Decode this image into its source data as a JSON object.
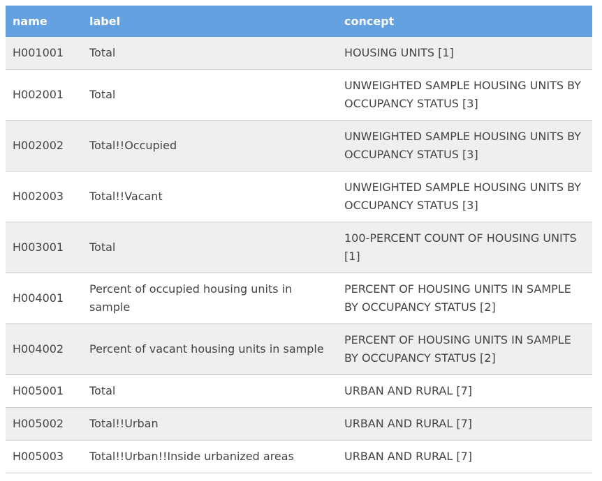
{
  "table": {
    "headers": [
      "name",
      "label",
      "concept"
    ],
    "rows": [
      {
        "name": "H001001",
        "label": "Total",
        "concept": "HOUSING UNITS [1]"
      },
      {
        "name": "H002001",
        "label": "Total",
        "concept": "UNWEIGHTED SAMPLE HOUSING UNITS BY OCCUPANCY STATUS [3]"
      },
      {
        "name": "H002002",
        "label": "Total!!Occupied",
        "concept": "UNWEIGHTED SAMPLE HOUSING UNITS BY OCCUPANCY STATUS [3]"
      },
      {
        "name": "H002003",
        "label": "Total!!Vacant",
        "concept": "UNWEIGHTED SAMPLE HOUSING UNITS BY OCCUPANCY STATUS [3]"
      },
      {
        "name": "H003001",
        "label": "Total",
        "concept": "100-PERCENT COUNT OF HOUSING UNITS [1]"
      },
      {
        "name": "H004001",
        "label": "Percent of occupied housing units in sample",
        "concept": "PERCENT OF HOUSING UNITS IN SAMPLE BY OCCUPANCY STATUS [2]"
      },
      {
        "name": "H004002",
        "label": "Percent of vacant housing units in sample",
        "concept": "PERCENT OF HOUSING UNITS IN SAMPLE BY OCCUPANCY STATUS [2]"
      },
      {
        "name": "H005001",
        "label": "Total",
        "concept": "URBAN AND RURAL [7]"
      },
      {
        "name": "H005002",
        "label": "Total!!Urban",
        "concept": "URBAN AND RURAL [7]"
      },
      {
        "name": "H005003",
        "label": "Total!!Urban!!Inside urbanized areas",
        "concept": "URBAN AND RURAL [7]"
      }
    ]
  },
  "colors": {
    "header_bg": "#64a1e0",
    "row_stripe": "#efefef"
  }
}
